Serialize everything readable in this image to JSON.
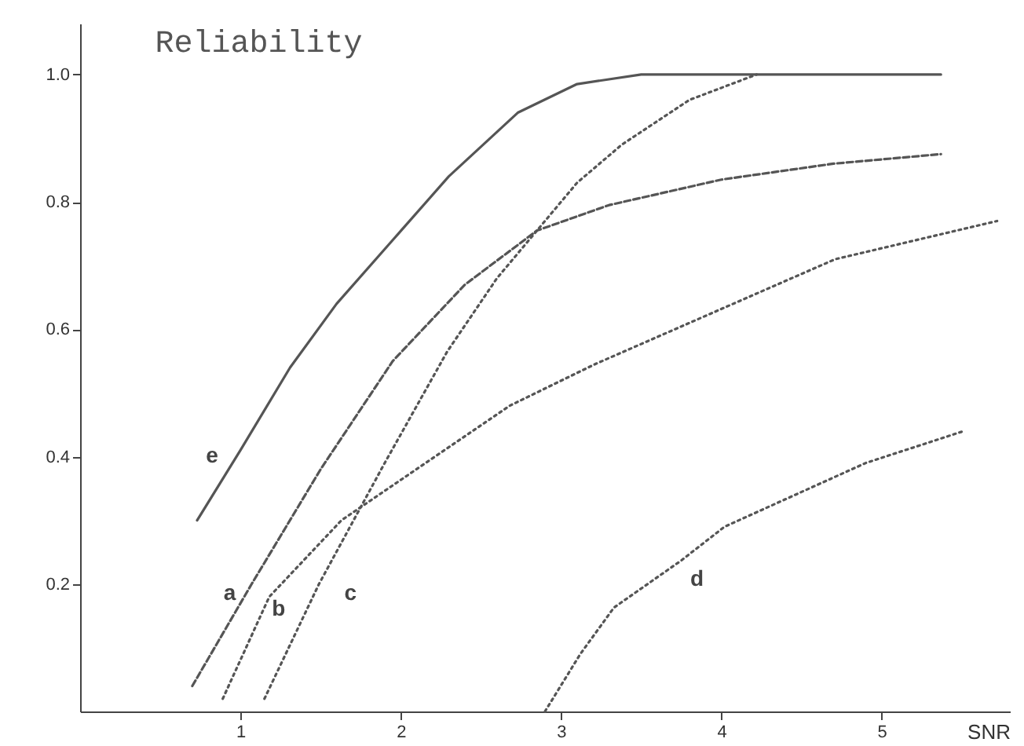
{
  "chart_data": {
    "type": "line",
    "title": "Reliability",
    "xlabel": "SNR",
    "xlim": [
      0,
      5.8
    ],
    "ylim": [
      0,
      1.08
    ],
    "xticks": [
      1,
      2,
      3,
      4,
      5
    ],
    "yticks": [
      {
        "value": 0.2,
        "label": "0.2"
      },
      {
        "value": 0.4,
        "label": "0.4"
      },
      {
        "value": 0.6,
        "label": "0.6"
      },
      {
        "value": 0.8,
        "label": "0.8"
      },
      {
        "value": 1.0,
        "label": "1.0"
      }
    ],
    "grid": false,
    "series": [
      {
        "name": "e",
        "color": "#555555",
        "line_style": "solid",
        "x": [
          0.73,
          1.0,
          1.31,
          1.6,
          1.95,
          2.3,
          2.73,
          3.1,
          3.5,
          5.37
        ],
        "values": [
          0.3,
          0.41,
          0.54,
          0.64,
          0.74,
          0.84,
          0.94,
          0.985,
          1.0,
          1.0
        ]
      },
      {
        "name": "a",
        "color": "#555555",
        "line_style": "dashed",
        "x": [
          0.7,
          1.07,
          1.5,
          1.95,
          2.4,
          2.85,
          3.3,
          4.0,
          4.7,
          5.37
        ],
        "values": [
          0.04,
          0.2,
          0.38,
          0.55,
          0.67,
          0.755,
          0.795,
          0.835,
          0.86,
          0.875
        ]
      },
      {
        "name": "b",
        "color": "#555555",
        "line_style": "dotted",
        "x": [
          0.89,
          1.18,
          1.63,
          1.98,
          2.68,
          3.21,
          4.71,
          5.72
        ],
        "values": [
          0.02,
          0.18,
          0.3,
          0.36,
          0.48,
          0.545,
          0.71,
          0.77
        ]
      },
      {
        "name": "c",
        "color": "#555555",
        "line_style": "dotted",
        "x": [
          1.15,
          1.49,
          1.9,
          2.29,
          2.6,
          2.85,
          3.1,
          3.38,
          3.8,
          4.22
        ],
        "values": [
          0.02,
          0.2,
          0.39,
          0.565,
          0.68,
          0.755,
          0.83,
          0.89,
          0.96,
          1.0
        ]
      },
      {
        "name": "d",
        "color": "#555555",
        "line_style": "dotted",
        "x": [
          2.9,
          3.12,
          3.33,
          3.75,
          4.02,
          4.9,
          5.51
        ],
        "values": [
          0.0,
          0.09,
          0.163,
          0.237,
          0.29,
          0.39,
          0.44
        ]
      }
    ]
  }
}
